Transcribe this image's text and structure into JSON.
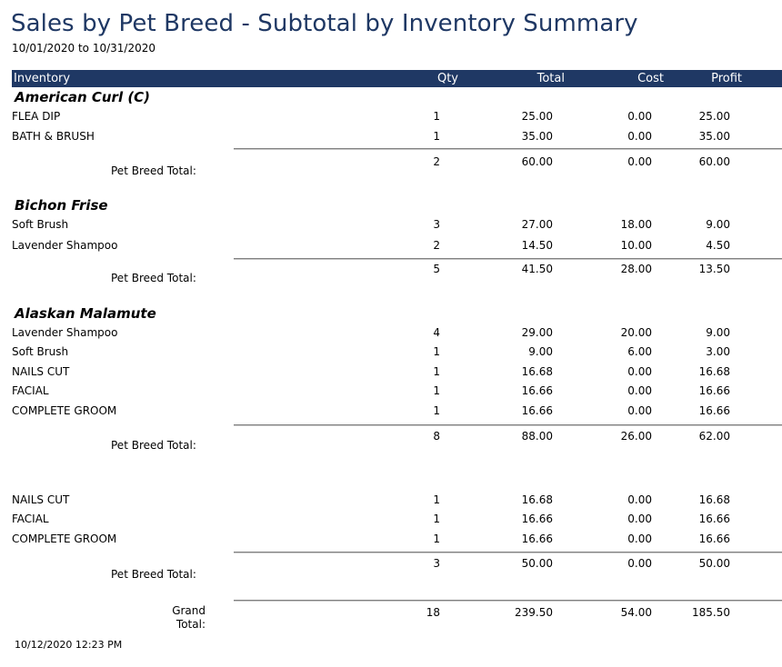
{
  "report": {
    "title": "Sales by Pet Breed - Subtotal by Inventory Summary",
    "date_range": "10/01/2020 to 10/31/2020",
    "printed_at": "10/12/2020 12:23 PM"
  },
  "columns": {
    "inventory": "Inventory",
    "qty": "Qty",
    "total": "Total",
    "cost": "Cost",
    "profit": "Profit"
  },
  "groups": [
    {
      "breed": "American Curl (C)",
      "items": [
        {
          "name": "FLEA DIP",
          "qty": "1",
          "total": "25.00",
          "cost": "0.00",
          "profit": "25.00"
        },
        {
          "name": "BATH & BRUSH",
          "qty": "1",
          "total": "35.00",
          "cost": "0.00",
          "profit": "35.00"
        }
      ],
      "subtotal": {
        "label": "Pet Breed Total:",
        "qty": "2",
        "total": "60.00",
        "cost": "0.00",
        "profit": "60.00"
      }
    },
    {
      "breed": "Bichon Frise",
      "items": [
        {
          "name": "Soft Brush",
          "qty": "3",
          "total": "27.00",
          "cost": "18.00",
          "profit": "9.00"
        },
        {
          "name": "Lavender Shampoo",
          "qty": "2",
          "total": "14.50",
          "cost": "10.00",
          "profit": "4.50"
        }
      ],
      "subtotal": {
        "label": "Pet Breed Total:",
        "qty": "5",
        "total": "41.50",
        "cost": "28.00",
        "profit": "13.50"
      }
    },
    {
      "breed": "Alaskan Malamute",
      "items": [
        {
          "name": "Lavender Shampoo",
          "qty": "4",
          "total": "29.00",
          "cost": "20.00",
          "profit": "9.00"
        },
        {
          "name": "Soft Brush",
          "qty": "1",
          "total": "9.00",
          "cost": "6.00",
          "profit": "3.00"
        },
        {
          "name": "NAILS CUT",
          "qty": "1",
          "total": "16.68",
          "cost": "0.00",
          "profit": "16.68"
        },
        {
          "name": "FACIAL",
          "qty": "1",
          "total": "16.66",
          "cost": "0.00",
          "profit": "16.66"
        },
        {
          "name": "COMPLETE GROOM",
          "qty": "1",
          "total": "16.66",
          "cost": "0.00",
          "profit": "16.66"
        }
      ],
      "subtotal": {
        "label": "Pet Breed Total:",
        "qty": "8",
        "total": "88.00",
        "cost": "26.00",
        "profit": "62.00"
      }
    },
    {
      "breed": "",
      "items": [
        {
          "name": "NAILS CUT",
          "qty": "1",
          "total": "16.68",
          "cost": "0.00",
          "profit": "16.68"
        },
        {
          "name": "FACIAL",
          "qty": "1",
          "total": "16.66",
          "cost": "0.00",
          "profit": "16.66"
        },
        {
          "name": "COMPLETE GROOM",
          "qty": "1",
          "total": "16.66",
          "cost": "0.00",
          "profit": "16.66"
        }
      ],
      "subtotal": {
        "label": "Pet Breed Total:",
        "qty": "3",
        "total": "50.00",
        "cost": "0.00",
        "profit": "50.00"
      }
    }
  ],
  "grand_total": {
    "label_line1": "Grand",
    "label_line2": "Total:",
    "qty": "18",
    "total": "239.50",
    "cost": "54.00",
    "profit": "185.50"
  },
  "colors": {
    "header_bg": "#1f3864",
    "title": "#1f3864"
  }
}
